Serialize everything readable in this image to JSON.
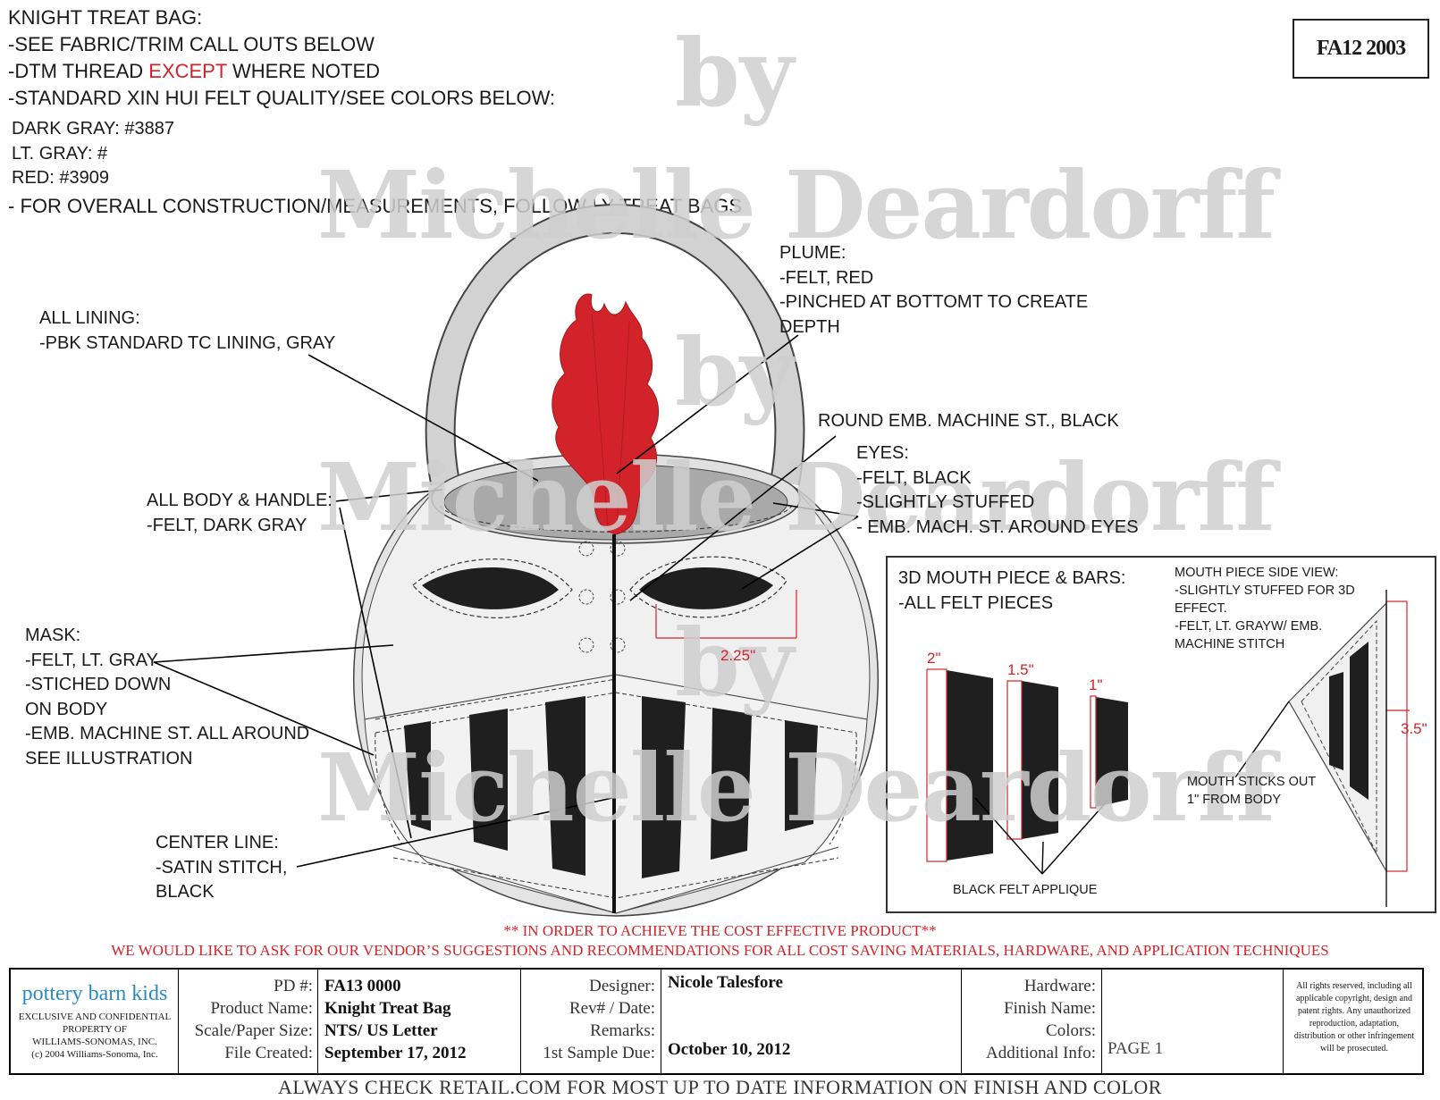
{
  "doc_id": "FA12 2003",
  "header": {
    "lines": [
      "KNIGHT TREAT BAG:",
      "-SEE FABRIC/TRIM CALL OUTS BELOW"
    ],
    "dtm_prefix": "-DTM THREAD ",
    "dtm_except": "EXCEPT",
    "dtm_suffix": " WHERE NOTED",
    "felt_quality": "-STANDARD XIN HUI FELT QUALITY/SEE COLORS BELOW:",
    "colors": [
      "DARK GRAY:  #3887",
      "LT. GRAY:  #",
      "RED:  #3909"
    ],
    "construction": "- FOR OVERALL CONSTRUCTION/MEASUREMENTS, FOLLOW LY TREAT BAGS"
  },
  "watermark": {
    "by": "by",
    "name": "Michelle Deardorff"
  },
  "callouts": {
    "plume": [
      "PLUME:",
      "-FELT, RED",
      "-PINCHED AT BOTTOMT TO CREATE",
      "DEPTH"
    ],
    "lining": [
      "ALL LINING:",
      "-PBK STANDARD TC LINING, GRAY"
    ],
    "round_emb": "ROUND EMB. MACHINE ST., BLACK",
    "eyes": [
      "EYES:",
      "-FELT, BLACK",
      "-SLIGHTLY STUFFED",
      "- EMB. MACH. ST. AROUND EYES"
    ],
    "body": [
      "ALL BODY & HANDLE:",
      "-FELT, DARK GRAY"
    ],
    "mask": [
      "MASK:",
      "-FELT,  LT. GRAY",
      "-STICHED DOWN",
      "ON BODY",
      "-EMB. MACHINE ST. ALL AROUND",
      "SEE ILLUSTRATION"
    ],
    "center": [
      "CENTER LINE:",
      "-SATIN STITCH,",
      "BLACK"
    ],
    "eye_dim": "2.25\""
  },
  "detail": {
    "title": [
      "3D MOUTH PIECE & BARS:",
      "-ALL FELT PIECES"
    ],
    "side_view": [
      "MOUTH PIECE SIDE VIEW:",
      "-SLIGHTLY STUFFED FOR 3D",
      "EFFECT.",
      "-FELT, LT. GRAYW/ EMB.",
      "MACHINE STITCH"
    ],
    "bar_dims": [
      "2\"",
      "1.5\"",
      "1\""
    ],
    "applique": "BLACK FELT APPLIQUE",
    "sticks_out": [
      "MOUTH STICKS OUT",
      "1\" FROM BODY"
    ],
    "side_dim": "3.5\""
  },
  "notice": {
    "line1": "** IN ORDER TO ACHIEVE THE COST EFFECTIVE PRODUCT**",
    "line2": "WE WOULD LIKE TO ASK FOR OUR VENDOR’S SUGGESTIONS AND RECOMMENDATIONS FOR ALL COST SAVING MATERIALS, HARDWARE, AND APPLICATION TECHNIQUES"
  },
  "titleblock": {
    "brand": "pottery barn kids",
    "brand_notes": [
      "EXCLUSIVE AND CONFIDENTIAL",
      "PROPERTY OF",
      "WILLIAMS-SONOMAS, INC.",
      "(c) 2004 Williams-Sonoma, Inc."
    ],
    "labels1": [
      "PD #:",
      "Product Name:",
      "Scale/Paper Size:",
      "File Created:"
    ],
    "values1": [
      "FA13 0000",
      "Knight Treat Bag",
      "NTS/ US Letter",
      "September 17, 2012"
    ],
    "labels2": [
      "Designer:",
      "Rev# / Date:",
      "Remarks:",
      "1st Sample Due:"
    ],
    "values2": [
      "Nicole Talesfore",
      "",
      "",
      "October 10, 2012"
    ],
    "labels3": [
      "Hardware:",
      "Finish Name:",
      "Colors:",
      "Additional Info:"
    ],
    "page": "PAGE 1",
    "rights": [
      "All rights reserved, including all",
      "applicable copyright, design and",
      "patent rights. Any unauthorized",
      "reproduction, adaptation,",
      "distribution or other infringement",
      "will be prosecuted."
    ]
  },
  "footer": "ALWAYS CHECK RETAIL.COM FOR MOST UP TO DATE INFORMATION ON FINISH AND COLOR"
}
